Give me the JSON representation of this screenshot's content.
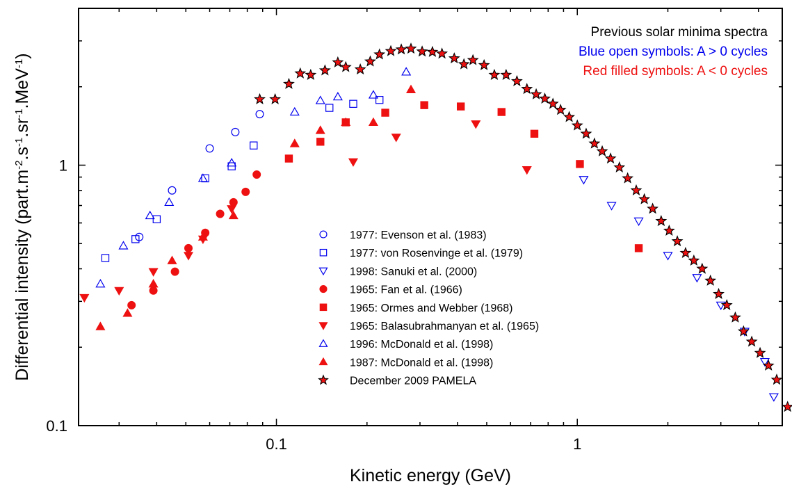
{
  "chart_data": {
    "type": "scatter",
    "xscale": "log",
    "yscale": "log",
    "xlim": [
      0.022,
      4.8
    ],
    "ylim": [
      0.1,
      4.0
    ],
    "xlabel": "Kinetic energy (GeV)",
    "ylabel_parts": [
      "Differential intensity (part.m",
      "-2",
      ".s",
      "-1",
      ".sr",
      "-1",
      ".MeV",
      "-1",
      ")"
    ],
    "x_ticks": [
      {
        "value": 0.1,
        "label": "0.1"
      },
      {
        "value": 1,
        "label": "1"
      }
    ],
    "y_ticks": [
      {
        "value": 0.1,
        "label": "0.1"
      },
      {
        "value": 1,
        "label": "1"
      }
    ],
    "annotations": [
      {
        "text": "Previous solar minima spectra",
        "color": "#000000"
      },
      {
        "text": "Blue open symbols: A > 0 cycles",
        "color": "#0000ee"
      },
      {
        "text": "Red filled symbols: A < 0 cycles",
        "color": "#ee1111"
      }
    ],
    "legend_placement": "center",
    "series": [
      {
        "name": "1977: Evenson et al. (1983)",
        "marker": "circle",
        "filled": false,
        "color": "#0000ee",
        "points": [
          [
            0.035,
            0.53
          ],
          [
            0.045,
            0.8
          ],
          [
            0.06,
            1.16
          ],
          [
            0.073,
            1.34
          ],
          [
            0.088,
            1.57
          ]
        ]
      },
      {
        "name": "1977: von Rosenvinge et al. (1979)",
        "marker": "square",
        "filled": false,
        "color": "#0000ee",
        "points": [
          [
            0.027,
            0.44
          ],
          [
            0.034,
            0.52
          ],
          [
            0.04,
            0.62
          ],
          [
            0.058,
            0.89
          ],
          [
            0.071,
            0.99
          ],
          [
            0.084,
            1.19
          ],
          [
            0.15,
            1.66
          ],
          [
            0.18,
            1.72
          ],
          [
            0.22,
            1.78
          ]
        ]
      },
      {
        "name": "1998: Sanuki et al. (2000)",
        "marker": "tri-down",
        "filled": false,
        "color": "#0000ee",
        "points": [
          [
            1.05,
            0.88
          ],
          [
            1.3,
            0.7
          ],
          [
            1.6,
            0.61
          ],
          [
            2.0,
            0.45
          ],
          [
            2.5,
            0.37
          ],
          [
            3.0,
            0.29
          ],
          [
            3.6,
            0.23
          ],
          [
            4.2,
            0.176
          ],
          [
            4.5,
            0.129
          ]
        ]
      },
      {
        "name": "1965: Fan et al. (1966)",
        "marker": "circle",
        "filled": true,
        "color": "#ee1111",
        "points": [
          [
            0.033,
            0.29
          ],
          [
            0.039,
            0.33
          ],
          [
            0.046,
            0.39
          ],
          [
            0.051,
            0.48
          ],
          [
            0.058,
            0.55
          ],
          [
            0.065,
            0.65
          ],
          [
            0.072,
            0.72
          ],
          [
            0.079,
            0.79
          ],
          [
            0.086,
            0.92
          ]
        ]
      },
      {
        "name": "1965: Ormes and Webber (1968)",
        "marker": "square",
        "filled": true,
        "color": "#ee1111",
        "points": [
          [
            0.11,
            1.06
          ],
          [
            0.14,
            1.23
          ],
          [
            0.17,
            1.46
          ],
          [
            0.23,
            1.59
          ],
          [
            0.31,
            1.7
          ],
          [
            0.41,
            1.68
          ],
          [
            0.56,
            1.6
          ],
          [
            0.72,
            1.32
          ],
          [
            1.02,
            1.01
          ],
          [
            1.6,
            0.48
          ]
        ]
      },
      {
        "name": "1965: Balasubrahmanyan et al. (1965)",
        "marker": "tri-down",
        "filled": true,
        "color": "#ee1111",
        "points": [
          [
            0.023,
            0.31
          ],
          [
            0.03,
            0.33
          ],
          [
            0.039,
            0.39
          ],
          [
            0.051,
            0.45
          ],
          [
            0.057,
            0.52
          ],
          [
            0.071,
            0.68
          ],
          [
            0.18,
            1.03
          ],
          [
            0.25,
            1.28
          ],
          [
            0.46,
            1.44
          ],
          [
            0.68,
            0.96
          ]
        ]
      },
      {
        "name": "1996: McDonald et al. (1998)",
        "marker": "tri-up",
        "filled": false,
        "color": "#0000ee",
        "points": [
          [
            0.026,
            0.35
          ],
          [
            0.031,
            0.49
          ],
          [
            0.038,
            0.64
          ],
          [
            0.044,
            0.72
          ],
          [
            0.057,
            0.89
          ],
          [
            0.071,
            1.02
          ],
          [
            0.115,
            1.6
          ],
          [
            0.14,
            1.77
          ],
          [
            0.16,
            1.83
          ],
          [
            0.21,
            1.86
          ],
          [
            0.27,
            2.28
          ]
        ]
      },
      {
        "name": "1987: McDonald et al. (1998)",
        "marker": "tri-up",
        "filled": true,
        "color": "#ee1111",
        "points": [
          [
            0.026,
            0.24
          ],
          [
            0.032,
            0.27
          ],
          [
            0.039,
            0.35
          ],
          [
            0.045,
            0.43
          ],
          [
            0.057,
            0.53
          ],
          [
            0.072,
            0.64
          ],
          [
            0.115,
            1.21
          ],
          [
            0.14,
            1.36
          ],
          [
            0.17,
            1.46
          ],
          [
            0.21,
            1.46
          ],
          [
            0.28,
            1.95
          ]
        ]
      },
      {
        "name": "December 2009 PAMELA",
        "marker": "star",
        "filled": true,
        "color": "#ee1111",
        "points": [
          [
            0.088,
            1.79
          ],
          [
            0.099,
            1.79
          ],
          [
            0.11,
            2.05
          ],
          [
            0.12,
            2.25
          ],
          [
            0.13,
            2.22
          ],
          [
            0.145,
            2.31
          ],
          [
            0.16,
            2.48
          ],
          [
            0.17,
            2.38
          ],
          [
            0.19,
            2.33
          ],
          [
            0.205,
            2.5
          ],
          [
            0.22,
            2.66
          ],
          [
            0.24,
            2.74
          ],
          [
            0.26,
            2.78
          ],
          [
            0.28,
            2.8
          ],
          [
            0.305,
            2.73
          ],
          [
            0.33,
            2.72
          ],
          [
            0.355,
            2.68
          ],
          [
            0.39,
            2.57
          ],
          [
            0.42,
            2.44
          ],
          [
            0.45,
            2.53
          ],
          [
            0.49,
            2.42
          ],
          [
            0.53,
            2.22
          ],
          [
            0.58,
            2.22
          ],
          [
            0.63,
            2.1
          ],
          [
            0.68,
            1.96
          ],
          [
            0.73,
            1.87
          ],
          [
            0.78,
            1.8
          ],
          [
            0.83,
            1.72
          ],
          [
            0.88,
            1.63
          ],
          [
            0.94,
            1.53
          ],
          [
            1.0,
            1.42
          ],
          [
            1.07,
            1.32
          ],
          [
            1.14,
            1.21
          ],
          [
            1.21,
            1.13
          ],
          [
            1.29,
            1.06
          ],
          [
            1.38,
            0.98
          ],
          [
            1.47,
            0.89
          ],
          [
            1.57,
            0.8
          ],
          [
            1.67,
            0.74
          ],
          [
            1.78,
            0.68
          ],
          [
            1.9,
            0.61
          ],
          [
            2.02,
            0.56
          ],
          [
            2.15,
            0.51
          ],
          [
            2.29,
            0.46
          ],
          [
            2.44,
            0.43
          ],
          [
            2.6,
            0.4
          ],
          [
            2.77,
            0.36
          ],
          [
            2.95,
            0.32
          ],
          [
            3.14,
            0.29
          ],
          [
            3.35,
            0.26
          ],
          [
            3.57,
            0.23
          ],
          [
            3.8,
            0.21
          ],
          [
            4.05,
            0.19
          ],
          [
            4.32,
            0.17
          ],
          [
            4.6,
            0.15
          ],
          [
            5.0,
            0.118
          ]
        ]
      }
    ]
  }
}
